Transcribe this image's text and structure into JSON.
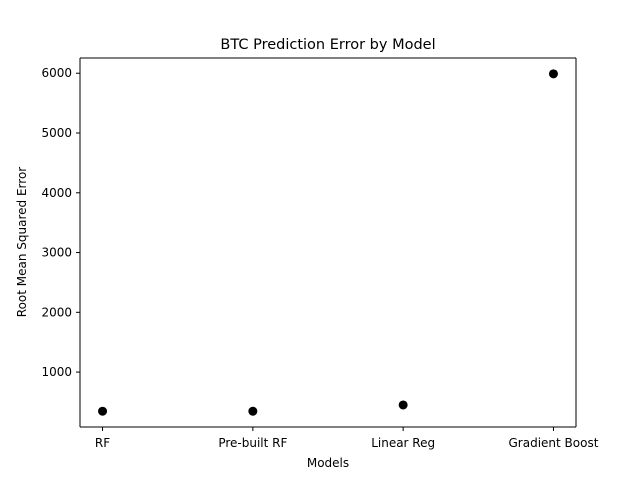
{
  "chart_data": {
    "type": "scatter",
    "title": "BTC Prediction Error by Model",
    "xlabel": "Models",
    "ylabel": "Root Mean Squared Error",
    "categories": [
      "RF",
      "Pre-built RF",
      "Linear Reg",
      "Gradient Boost"
    ],
    "series": [
      {
        "values": [
          345,
          345,
          450,
          5990
        ]
      }
    ],
    "ylim": [
      81,
      6255
    ],
    "yticks": [
      1000,
      2000,
      3000,
      4000,
      5000,
      6000
    ],
    "ytick_labels": [
      "1000",
      "2000",
      "3000",
      "4000",
      "5000",
      "6000"
    ],
    "grid": false,
    "legend": "none",
    "marker_color": "#000000"
  }
}
